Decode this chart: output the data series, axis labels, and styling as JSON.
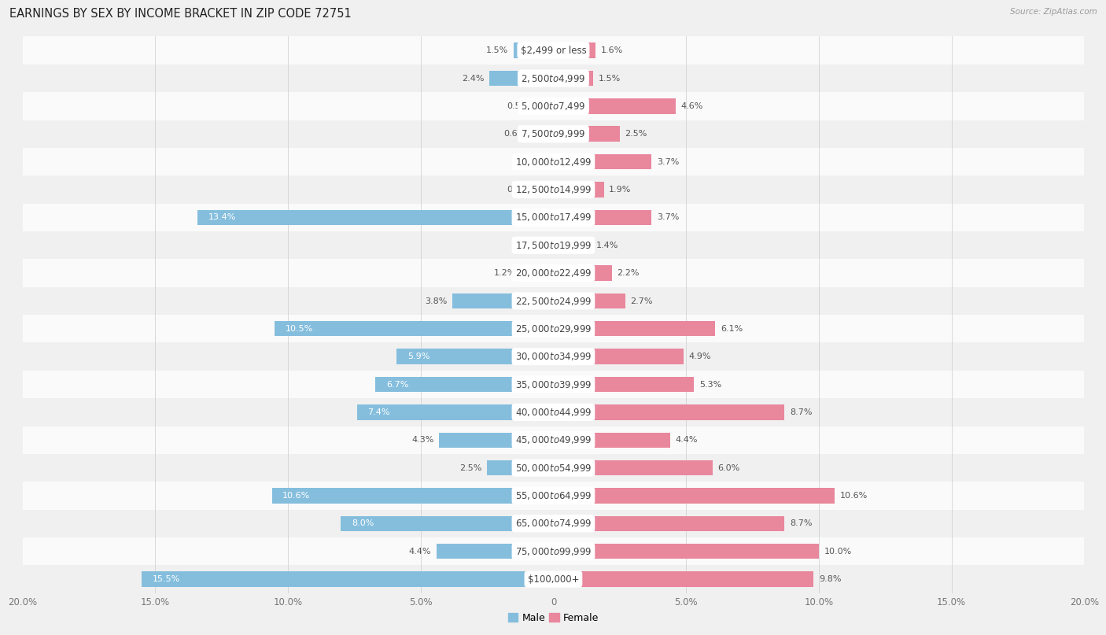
{
  "title": "EARNINGS BY SEX BY INCOME BRACKET IN ZIP CODE 72751",
  "source": "Source: ZipAtlas.com",
  "categories": [
    "$2,499 or less",
    "$2,500 to $4,999",
    "$5,000 to $7,499",
    "$7,500 to $9,999",
    "$10,000 to $12,499",
    "$12,500 to $14,999",
    "$15,000 to $17,499",
    "$17,500 to $19,999",
    "$20,000 to $22,499",
    "$22,500 to $24,999",
    "$25,000 to $29,999",
    "$30,000 to $34,999",
    "$35,000 to $39,999",
    "$40,000 to $44,999",
    "$45,000 to $49,999",
    "$50,000 to $54,999",
    "$55,000 to $64,999",
    "$65,000 to $74,999",
    "$75,000 to $99,999",
    "$100,000+"
  ],
  "male_values": [
    1.5,
    2.4,
    0.51,
    0.62,
    0.0,
    0.7,
    13.4,
    0.0,
    1.2,
    3.8,
    10.5,
    5.9,
    6.7,
    7.4,
    4.3,
    2.5,
    10.6,
    8.0,
    4.4,
    15.5
  ],
  "female_values": [
    1.6,
    1.5,
    4.6,
    2.5,
    3.7,
    1.9,
    3.7,
    1.4,
    2.2,
    2.7,
    6.1,
    4.9,
    5.3,
    8.7,
    4.4,
    6.0,
    10.6,
    8.7,
    10.0,
    9.8
  ],
  "male_color": "#85bedd",
  "female_color": "#e9879d",
  "bar_height": 0.55,
  "xlim": 20.0,
  "bg_color": "#f0f0f0",
  "row_odd_color": "#f0f0f0",
  "row_even_color": "#fafafa",
  "title_fontsize": 10.5,
  "label_fontsize": 8.0,
  "category_fontsize": 8.5,
  "axis_tick_fontsize": 8.5,
  "inside_bar_threshold": 5.0
}
